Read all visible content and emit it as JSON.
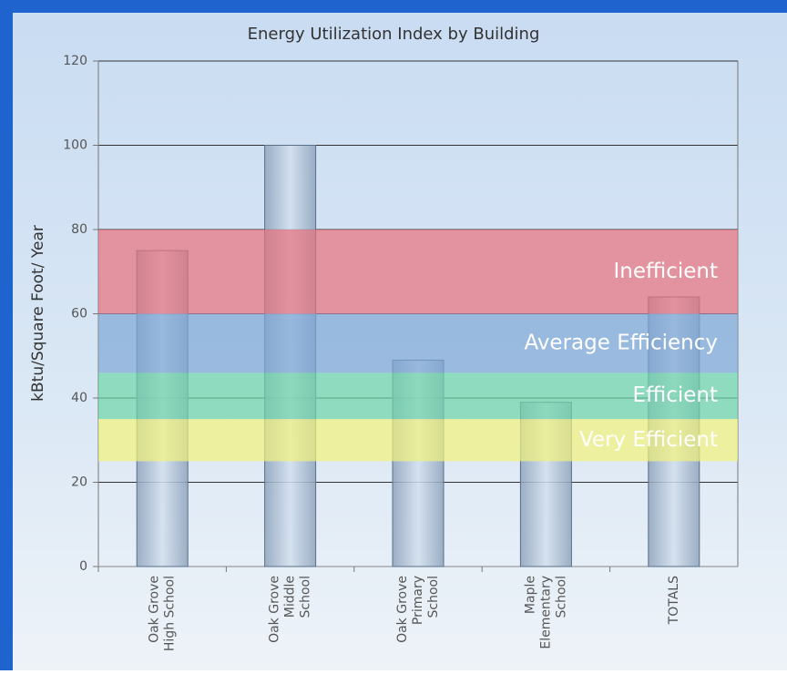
{
  "chart_data": {
    "type": "bar",
    "title": "Energy Utilization Index by Building",
    "y_label": "kBtu/Square Foot/ Year",
    "categories": [
      [
        "Oak Grove",
        "High School"
      ],
      [
        "Oak Grove",
        "Middle",
        "School"
      ],
      [
        "Oak Grove",
        "Primary",
        "School"
      ],
      [
        "Maple",
        "Elementary",
        "School"
      ],
      [
        "TOTALS"
      ]
    ],
    "values": [
      75,
      100,
      49,
      39,
      64
    ],
    "color": "#b4c8de",
    "ylim": [
      0,
      120
    ],
    "yticks": [
      0,
      20,
      40,
      60,
      80,
      100,
      120
    ],
    "grid": true,
    "bands": [
      {
        "label": "Inefficient",
        "from": 60,
        "to": 80,
        "color": "#e8707a"
      },
      {
        "label": "Average Efficiency",
        "from": 46,
        "to": 60,
        "color": "#7fa6d6"
      },
      {
        "label": "Efficient",
        "from": 35,
        "to": 46,
        "color": "#6fd6a8"
      },
      {
        "label": "Very Efficient",
        "from": 25,
        "to": 35,
        "color": "#f2f27a"
      }
    ]
  }
}
